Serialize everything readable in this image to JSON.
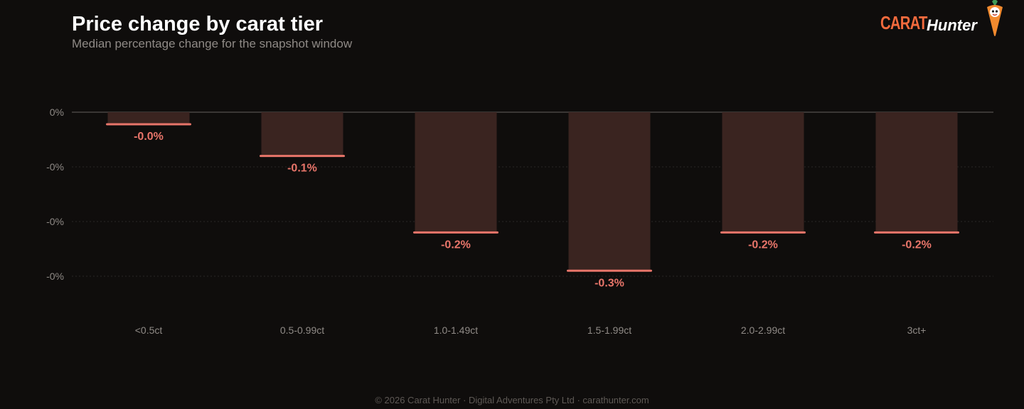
{
  "header": {
    "title": "Price change by carat tier",
    "subtitle": "Median percentage change for the snapshot window"
  },
  "logo": {
    "word1": "CARAT",
    "word2": "Hunter"
  },
  "footer": {
    "text": "© 2026 Carat Hunter · Digital Adventures Pty Ltd · carathunter.com"
  },
  "colors": {
    "background": "#0f0d0c",
    "bar_fill": "#3a2420",
    "bar_edge": "#e8756a",
    "value_label": "#e8756a",
    "zero_line": "#3a3735",
    "grid": "#2a2826",
    "tick_text": "#8f8a86"
  },
  "chart_data": {
    "type": "bar",
    "title": "Price change by carat tier",
    "subtitle": "Median percentage change for the snapshot window",
    "categories": [
      "<0.5ct",
      "0.5-0.99ct",
      "1.0-1.49ct",
      "1.5-1.99ct",
      "2.0-2.99ct",
      "3ct+"
    ],
    "values": [
      -0.022,
      -0.08,
      -0.22,
      -0.29,
      -0.22,
      -0.22
    ],
    "value_labels": [
      "-0.0%",
      "-0.1%",
      "-0.2%",
      "-0.3%",
      "-0.2%",
      "-0.2%"
    ],
    "y_ticks": [
      0,
      -0.1,
      -0.2,
      -0.3
    ],
    "y_tick_labels": [
      "0%",
      "-0%",
      "-0%",
      "-0%"
    ],
    "ylim": [
      -0.4,
      0
    ],
    "grid": true,
    "legend": "none"
  }
}
